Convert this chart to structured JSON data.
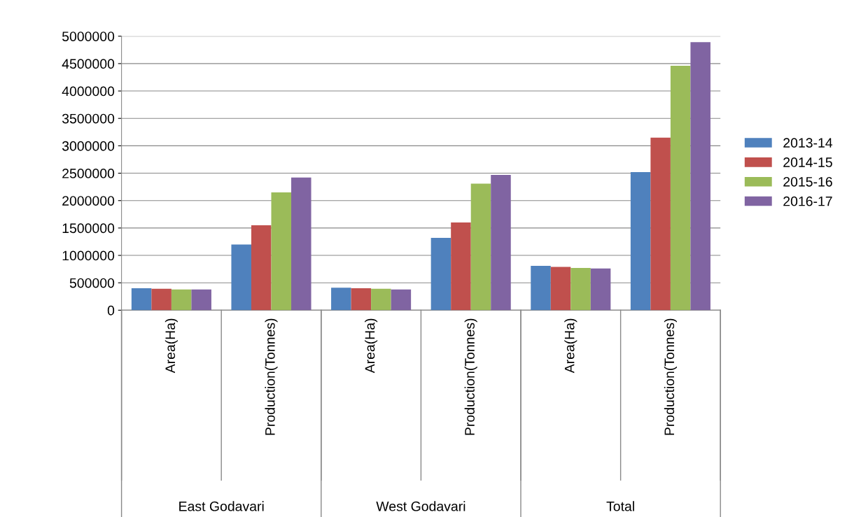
{
  "chart_data": {
    "type": "bar",
    "categories": [
      "Area(Ha)",
      "Production(Tonnes)",
      "Area(Ha)",
      "Production(Tonnes)",
      "Area(Ha)",
      "Production(Tonnes)"
    ],
    "series": [
      {
        "name": "2013-14",
        "color": "#4f81bd",
        "values": [
          400000,
          1200000,
          410000,
          1320000,
          810000,
          2520000
        ]
      },
      {
        "name": "2014-15",
        "color": "#c0504d",
        "values": [
          390000,
          1550000,
          400000,
          1600000,
          790000,
          3150000
        ]
      },
      {
        "name": "2015-16",
        "color": "#9bbb59",
        "values": [
          380000,
          2150000,
          390000,
          2310000,
          770000,
          4460000
        ]
      },
      {
        "name": "2016-17",
        "color": "#8064a2",
        "values": [
          380000,
          2420000,
          380000,
          2470000,
          760000,
          4890000
        ]
      }
    ],
    "annotations": [
      "East Godavari",
      "West Godavari",
      "Total"
    ],
    "ylim": [
      0,
      5000000
    ],
    "yticks": [
      0,
      500000,
      1000000,
      1500000,
      2000000,
      2500000,
      3000000,
      3500000,
      4000000,
      4500000,
      5000000
    ],
    "grid": "y",
    "legend": "right"
  }
}
